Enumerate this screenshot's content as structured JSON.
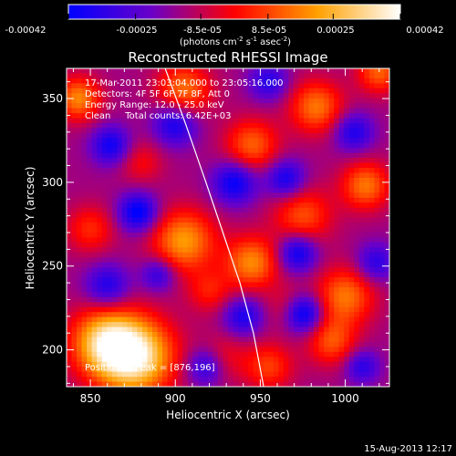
{
  "chart_data": {
    "type": "heatmap",
    "title": "Reconstructed RHESSI Image",
    "xlabel": "Heliocentric X (arcsec)",
    "ylabel": "Heliocentric Y (arcsec)",
    "xlim": [
      836,
      1026
    ],
    "ylim": [
      178,
      368
    ],
    "xticks": [
      850,
      900,
      950,
      1000
    ],
    "yticks": [
      200,
      250,
      300,
      350
    ],
    "colorbar": {
      "colormap": "blue-purple-red-yellow-white",
      "range": [
        -0.00042,
        0.00042
      ],
      "tick_labels": [
        "-0.00042",
        "-0.00025",
        "-8.5e-05",
        "8.5e-05",
        "0.00025",
        "0.00042"
      ],
      "unit_label_parts": [
        "(photons cm",
        "-2",
        " s",
        "-1",
        " asec",
        "-2",
        ")"
      ]
    },
    "annotations": [
      "17-Mar-2011 23:03:04.000 to 23:05:16.000",
      "Detectors: 4F 5F 6F 7F 8F, Att 0",
      "Energy Range: 12.0 - 25.0 keV",
      "Clean     Total counts: 6.42E+03"
    ],
    "peak_label": "Position of Peak = [876,196]",
    "peak": [
      876,
      196
    ],
    "limb_curve": [
      [
        894,
        368
      ],
      [
        906,
        335
      ],
      [
        918,
        300
      ],
      [
        928,
        270
      ],
      [
        938,
        240
      ],
      [
        946,
        210
      ],
      [
        952,
        178
      ]
    ],
    "blobs": [
      {
        "x": 876,
        "y": 196,
        "s": 16,
        "a": 1.0
      },
      {
        "x": 858,
        "y": 205,
        "s": 14,
        "a": 0.7
      },
      {
        "x": 905,
        "y": 265,
        "s": 13,
        "a": 0.65
      },
      {
        "x": 945,
        "y": 252,
        "s": 11,
        "a": 0.6
      },
      {
        "x": 975,
        "y": 280,
        "s": 12,
        "a": 0.45
      },
      {
        "x": 1000,
        "y": 232,
        "s": 12,
        "a": 0.55
      },
      {
        "x": 1012,
        "y": 298,
        "s": 10,
        "a": 0.55
      },
      {
        "x": 992,
        "y": 205,
        "s": 10,
        "a": 0.45
      },
      {
        "x": 945,
        "y": 322,
        "s": 11,
        "a": 0.5
      },
      {
        "x": 983,
        "y": 345,
        "s": 11,
        "a": 0.55
      },
      {
        "x": 905,
        "y": 355,
        "s": 11,
        "a": 0.55
      },
      {
        "x": 843,
        "y": 350,
        "s": 9,
        "a": 0.6
      },
      {
        "x": 1020,
        "y": 366,
        "s": 9,
        "a": 0.5
      },
      {
        "x": 850,
        "y": 272,
        "s": 10,
        "a": 0.35
      },
      {
        "x": 955,
        "y": 190,
        "s": 10,
        "a": 0.4
      },
      {
        "x": 880,
        "y": 312,
        "s": 9,
        "a": 0.25
      },
      {
        "x": 968,
        "y": 225,
        "s": 9,
        "a": 0.3
      },
      {
        "x": 920,
        "y": 235,
        "s": 9,
        "a": 0.3
      },
      {
        "x": 928,
        "y": 195,
        "s": 10,
        "a": 0.25
      },
      {
        "x": 860,
        "y": 238,
        "s": 9,
        "a": -0.45
      },
      {
        "x": 878,
        "y": 282,
        "s": 8,
        "a": -0.6
      },
      {
        "x": 862,
        "y": 322,
        "s": 8,
        "a": -0.5
      },
      {
        "x": 900,
        "y": 335,
        "s": 9,
        "a": -0.5
      },
      {
        "x": 935,
        "y": 300,
        "s": 9,
        "a": -0.55
      },
      {
        "x": 965,
        "y": 302,
        "s": 8,
        "a": -0.5
      },
      {
        "x": 975,
        "y": 222,
        "s": 8,
        "a": -0.75
      },
      {
        "x": 972,
        "y": 258,
        "s": 8,
        "a": -0.55
      },
      {
        "x": 940,
        "y": 220,
        "s": 8,
        "a": -0.45
      },
      {
        "x": 918,
        "y": 190,
        "s": 8,
        "a": -0.45
      },
      {
        "x": 1005,
        "y": 330,
        "s": 8,
        "a": -0.45
      },
      {
        "x": 1018,
        "y": 252,
        "s": 8,
        "a": -0.4
      },
      {
        "x": 955,
        "y": 360,
        "s": 8,
        "a": -0.4
      },
      {
        "x": 890,
        "y": 245,
        "s": 7,
        "a": -0.4
      },
      {
        "x": 1010,
        "y": 190,
        "s": 7,
        "a": -0.4
      }
    ]
  },
  "footer": {
    "timestamp": "15-Aug-2013 12:17"
  }
}
